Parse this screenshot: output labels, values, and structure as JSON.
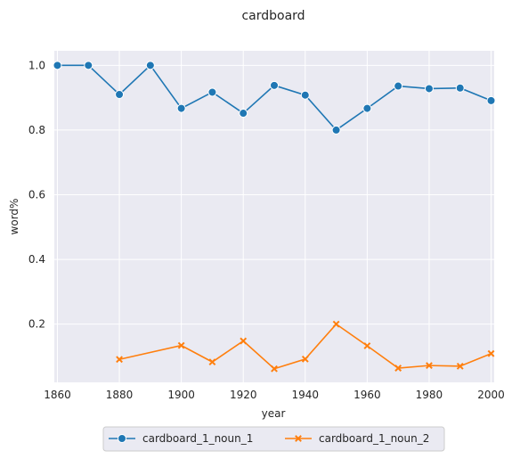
{
  "chart_data": {
    "type": "line",
    "title": "cardboard",
    "xlabel": "year",
    "ylabel": "word%",
    "xlim": [
      1859,
      2001
    ],
    "ylim": [
      0.02,
      1.045
    ],
    "xticks": [
      1860,
      1880,
      1900,
      1920,
      1940,
      1960,
      1980,
      2000
    ],
    "yticks": [
      0.2,
      0.4,
      0.6,
      0.8,
      1.0
    ],
    "ytick_labels": [
      "0.2",
      "0.4",
      "0.6",
      "0.8",
      "1.0"
    ],
    "grid": true,
    "legend_position": "bottom-center",
    "series": [
      {
        "name": "cardboard_1_noun_1",
        "color": "#1f77b4",
        "marker": "circle",
        "x": [
          1860,
          1870,
          1880,
          1890,
          1900,
          1910,
          1920,
          1930,
          1940,
          1950,
          1960,
          1970,
          1980,
          1990,
          2000
        ],
        "values": [
          1.0,
          1.0,
          0.91,
          1.0,
          0.867,
          0.917,
          0.852,
          0.938,
          0.908,
          0.8,
          0.867,
          0.936,
          0.928,
          0.93,
          0.891
        ]
      },
      {
        "name": "cardboard_1_noun_2",
        "color": "#ff7f0e",
        "marker": "x",
        "x": [
          1880,
          1900,
          1910,
          1920,
          1930,
          1940,
          1950,
          1960,
          1970,
          1980,
          1990,
          2000
        ],
        "values": [
          0.091,
          0.134,
          0.083,
          0.148,
          0.062,
          0.092,
          0.2,
          0.133,
          0.064,
          0.072,
          0.07,
          0.109
        ]
      }
    ]
  }
}
